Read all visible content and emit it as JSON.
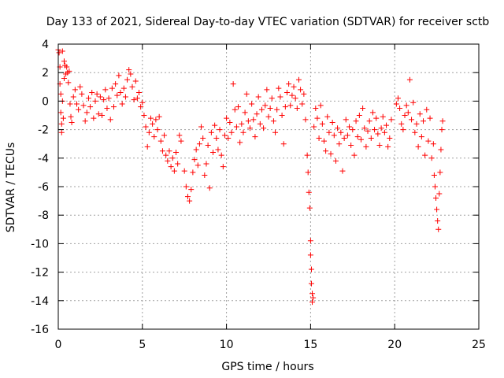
{
  "chart_data": {
    "type": "scatter",
    "title": "Day 133 of 2021, Sidereal Day-to-day VTEC variation (SDTVAR) for receiver sctb",
    "xlabel": "GPS time / hours",
    "ylabel": "SDTVAR / TECUs",
    "xlim": [
      0,
      25
    ],
    "ylim": [
      -16,
      4
    ],
    "xticks": [
      0,
      5,
      10,
      15,
      20,
      25
    ],
    "yticks": [
      4,
      2,
      0,
      -2,
      -4,
      -6,
      -8,
      -10,
      -12,
      -14,
      -16
    ],
    "grid": true,
    "marker": "+",
    "series_color": "#ff0000",
    "series": [
      {
        "name": "SDTVAR",
        "points": [
          [
            0.0,
            3.6
          ],
          [
            0.05,
            3.4
          ],
          [
            0.1,
            2.4
          ],
          [
            0.1,
            1.2
          ],
          [
            0.15,
            0.5
          ],
          [
            0.15,
            -0.8
          ],
          [
            0.2,
            -1.6
          ],
          [
            0.2,
            -2.2
          ],
          [
            0.25,
            3.5
          ],
          [
            0.25,
            0.0
          ],
          [
            0.3,
            -1.2
          ],
          [
            0.35,
            2.8
          ],
          [
            0.35,
            1.6
          ],
          [
            0.4,
            2.5
          ],
          [
            0.45,
            1.9
          ],
          [
            0.5,
            2.4
          ],
          [
            0.55,
            2.0
          ],
          [
            0.6,
            1.3
          ],
          [
            0.65,
            2.1
          ],
          [
            0.7,
            -0.2
          ],
          [
            0.75,
            -1.1
          ],
          [
            0.8,
            -1.5
          ],
          [
            0.9,
            0.3
          ],
          [
            1.0,
            0.8
          ],
          [
            1.1,
            -0.2
          ],
          [
            1.2,
            -0.6
          ],
          [
            1.3,
            1.0
          ],
          [
            1.4,
            0.5
          ],
          [
            1.5,
            -0.3
          ],
          [
            1.6,
            -1.4
          ],
          [
            1.7,
            -0.8
          ],
          [
            1.8,
            0.2
          ],
          [
            1.9,
            -0.4
          ],
          [
            2.0,
            0.6
          ],
          [
            2.1,
            -1.2
          ],
          [
            2.2,
            0.0
          ],
          [
            2.3,
            0.5
          ],
          [
            2.4,
            -0.9
          ],
          [
            2.5,
            0.3
          ],
          [
            2.6,
            -1.0
          ],
          [
            2.7,
            0.1
          ],
          [
            2.8,
            0.8
          ],
          [
            2.9,
            -0.5
          ],
          [
            3.0,
            0.2
          ],
          [
            3.1,
            -1.3
          ],
          [
            3.2,
            0.9
          ],
          [
            3.3,
            -0.4
          ],
          [
            3.4,
            1.2
          ],
          [
            3.5,
            0.4
          ],
          [
            3.6,
            1.8
          ],
          [
            3.7,
            0.6
          ],
          [
            3.8,
            -0.2
          ],
          [
            3.9,
            0.9
          ],
          [
            4.0,
            0.3
          ],
          [
            4.1,
            1.5
          ],
          [
            4.2,
            2.2
          ],
          [
            4.3,
            1.9
          ],
          [
            4.4,
            1.0
          ],
          [
            4.5,
            0.1
          ],
          [
            4.6,
            1.4
          ],
          [
            4.7,
            0.2
          ],
          [
            4.8,
            0.6
          ],
          [
            4.9,
            -0.4
          ],
          [
            5.0,
            -0.1
          ],
          [
            5.1,
            -1.0
          ],
          [
            5.2,
            -1.8
          ],
          [
            5.3,
            -3.2
          ],
          [
            5.4,
            -2.2
          ],
          [
            5.5,
            -1.2
          ],
          [
            5.6,
            -1.6
          ],
          [
            5.7,
            -2.5
          ],
          [
            5.8,
            -1.3
          ],
          [
            5.9,
            -2.0
          ],
          [
            6.0,
            -1.1
          ],
          [
            6.1,
            -2.8
          ],
          [
            6.2,
            -3.5
          ],
          [
            6.3,
            -2.4
          ],
          [
            6.4,
            -3.8
          ],
          [
            6.5,
            -4.2
          ],
          [
            6.6,
            -3.5
          ],
          [
            6.7,
            -4.6
          ],
          [
            6.8,
            -4.0
          ],
          [
            6.9,
            -4.9
          ],
          [
            7.0,
            -3.6
          ],
          [
            7.1,
            -4.4
          ],
          [
            7.2,
            -2.4
          ],
          [
            7.3,
            -2.8
          ],
          [
            7.5,
            -4.9
          ],
          [
            7.6,
            -6.0
          ],
          [
            7.7,
            -6.7
          ],
          [
            7.8,
            -7.0
          ],
          [
            7.9,
            -6.2
          ],
          [
            8.0,
            -5.0
          ],
          [
            8.1,
            -4.1
          ],
          [
            8.2,
            -3.4
          ],
          [
            8.3,
            -4.5
          ],
          [
            8.4,
            -3.0
          ],
          [
            8.5,
            -1.8
          ],
          [
            8.6,
            -2.6
          ],
          [
            8.7,
            -5.2
          ],
          [
            8.8,
            -4.4
          ],
          [
            8.9,
            -3.1
          ],
          [
            9.0,
            -6.1
          ],
          [
            9.1,
            -2.2
          ],
          [
            9.2,
            -3.6
          ],
          [
            9.3,
            -1.7
          ],
          [
            9.4,
            -2.6
          ],
          [
            9.5,
            -3.4
          ],
          [
            9.6,
            -2.0
          ],
          [
            9.7,
            -3.8
          ],
          [
            9.8,
            -4.6
          ],
          [
            9.9,
            -2.4
          ],
          [
            10.0,
            -1.2
          ],
          [
            10.1,
            -2.6
          ],
          [
            10.2,
            -1.5
          ],
          [
            10.3,
            -2.2
          ],
          [
            10.4,
            1.2
          ],
          [
            10.5,
            -0.6
          ],
          [
            10.6,
            -1.8
          ],
          [
            10.7,
            -0.4
          ],
          [
            10.8,
            -2.9
          ],
          [
            10.9,
            -1.6
          ],
          [
            11.0,
            -2.2
          ],
          [
            11.1,
            -0.8
          ],
          [
            11.2,
            0.5
          ],
          [
            11.3,
            -1.4
          ],
          [
            11.4,
            -1.9
          ],
          [
            11.5,
            -0.2
          ],
          [
            11.6,
            -1.3
          ],
          [
            11.7,
            -2.5
          ],
          [
            11.8,
            -0.9
          ],
          [
            11.9,
            0.3
          ],
          [
            12.0,
            -1.6
          ],
          [
            12.1,
            -0.6
          ],
          [
            12.2,
            -1.9
          ],
          [
            12.3,
            -0.3
          ],
          [
            12.4,
            0.8
          ],
          [
            12.5,
            -1.1
          ],
          [
            12.6,
            -0.5
          ],
          [
            12.7,
            0.2
          ],
          [
            12.8,
            -1.4
          ],
          [
            12.9,
            -2.2
          ],
          [
            13.0,
            -0.6
          ],
          [
            13.1,
            0.9
          ],
          [
            13.2,
            0.3
          ],
          [
            13.3,
            -1.0
          ],
          [
            13.4,
            -3.0
          ],
          [
            13.5,
            -0.4
          ],
          [
            13.6,
            0.6
          ],
          [
            13.7,
            1.2
          ],
          [
            13.8,
            -0.3
          ],
          [
            13.9,
            0.4
          ],
          [
            14.0,
            1.0
          ],
          [
            14.1,
            0.2
          ],
          [
            14.2,
            -0.5
          ],
          [
            14.3,
            1.5
          ],
          [
            14.4,
            0.8
          ],
          [
            14.5,
            -0.2
          ],
          [
            14.6,
            0.5
          ],
          [
            14.7,
            -1.3
          ],
          [
            14.8,
            -3.8
          ],
          [
            14.85,
            -5.0
          ],
          [
            14.9,
            -6.4
          ],
          [
            14.95,
            -7.5
          ],
          [
            15.0,
            -9.8
          ],
          [
            15.0,
            -10.8
          ],
          [
            15.05,
            -11.8
          ],
          [
            15.05,
            -12.8
          ],
          [
            15.1,
            -13.5
          ],
          [
            15.1,
            -14.1
          ],
          [
            15.15,
            -13.8
          ],
          [
            15.2,
            -1.8
          ],
          [
            15.3,
            -0.5
          ],
          [
            15.4,
            -1.2
          ],
          [
            15.5,
            -2.6
          ],
          [
            15.6,
            -0.3
          ],
          [
            15.7,
            -1.6
          ],
          [
            15.8,
            -2.8
          ],
          [
            15.9,
            -3.5
          ],
          [
            16.0,
            -1.1
          ],
          [
            16.1,
            -2.2
          ],
          [
            16.2,
            -3.7
          ],
          [
            16.3,
            -1.5
          ],
          [
            16.4,
            -2.4
          ],
          [
            16.5,
            -4.2
          ],
          [
            16.6,
            -1.9
          ],
          [
            16.7,
            -3.0
          ],
          [
            16.8,
            -2.2
          ],
          [
            16.9,
            -4.9
          ],
          [
            17.0,
            -2.6
          ],
          [
            17.1,
            -1.3
          ],
          [
            17.2,
            -2.4
          ],
          [
            17.3,
            -1.8
          ],
          [
            17.4,
            -3.1
          ],
          [
            17.5,
            -2.0
          ],
          [
            17.6,
            -3.8
          ],
          [
            17.7,
            -1.4
          ],
          [
            17.8,
            -2.5
          ],
          [
            17.9,
            -1.0
          ],
          [
            18.0,
            -2.7
          ],
          [
            18.1,
            -0.5
          ],
          [
            18.2,
            -1.9
          ],
          [
            18.3,
            -3.2
          ],
          [
            18.4,
            -2.1
          ],
          [
            18.5,
            -1.4
          ],
          [
            18.6,
            -2.6
          ],
          [
            18.7,
            -0.8
          ],
          [
            18.8,
            -2.0
          ],
          [
            18.9,
            -1.2
          ],
          [
            19.0,
            -2.3
          ],
          [
            19.1,
            -3.1
          ],
          [
            19.2,
            -1.9
          ],
          [
            19.3,
            -1.1
          ],
          [
            19.4,
            -2.2
          ],
          [
            19.5,
            -1.7
          ],
          [
            19.6,
            -3.2
          ],
          [
            19.7,
            -2.6
          ],
          [
            19.8,
            -1.3
          ],
          [
            20.1,
            -0.2
          ],
          [
            20.2,
            0.2
          ],
          [
            20.3,
            -0.5
          ],
          [
            20.4,
            -1.6
          ],
          [
            20.5,
            -2.0
          ],
          [
            20.6,
            -1.0
          ],
          [
            20.7,
            -0.3
          ],
          [
            20.8,
            -0.8
          ],
          [
            20.9,
            1.5
          ],
          [
            21.0,
            -1.3
          ],
          [
            21.1,
            -0.1
          ],
          [
            21.2,
            -2.2
          ],
          [
            21.3,
            -1.6
          ],
          [
            21.4,
            -3.2
          ],
          [
            21.5,
            -0.9
          ],
          [
            21.6,
            -2.5
          ],
          [
            21.7,
            -1.4
          ],
          [
            21.8,
            -3.8
          ],
          [
            21.9,
            -0.6
          ],
          [
            22.0,
            -2.8
          ],
          [
            22.1,
            -1.2
          ],
          [
            22.2,
            -4.0
          ],
          [
            22.3,
            -3.0
          ],
          [
            22.35,
            -5.2
          ],
          [
            22.4,
            -6.0
          ],
          [
            22.45,
            -6.8
          ],
          [
            22.5,
            -7.6
          ],
          [
            22.55,
            -8.4
          ],
          [
            22.6,
            -9.0
          ],
          [
            22.65,
            -6.5
          ],
          [
            22.7,
            -5.0
          ],
          [
            22.75,
            -3.4
          ],
          [
            22.8,
            -2.0
          ],
          [
            22.85,
            -1.4
          ]
        ]
      }
    ]
  }
}
